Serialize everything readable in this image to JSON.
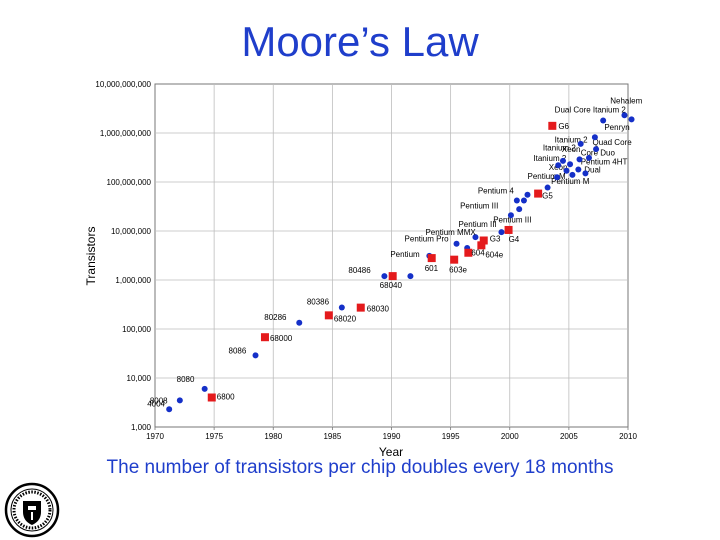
{
  "page": {
    "title": "Moore’s Law",
    "caption": "The number of transistors per chip doubles every 18 months"
  },
  "colors": {
    "title": "#1f3ecb",
    "intel": "#1530c8",
    "other": "#e41a1c",
    "grid": "#bdbdbd"
  },
  "seal": {
    "icon": "university-seal-icon"
  },
  "chart_data": {
    "type": "scatter",
    "title": "",
    "xlabel": "Year",
    "ylabel": "Transistors",
    "xlim": [
      1970,
      2010
    ],
    "ylim": [
      1000,
      10000000000
    ],
    "yscale": "log",
    "grid": true,
    "legend": "none",
    "x_ticks": [
      "1970",
      "1975",
      "1980",
      "1985",
      "1990",
      "1995",
      "2000",
      "2005",
      "2010"
    ],
    "y_ticks": [
      "1,000",
      "10,000",
      "100,000",
      "1,000,000",
      "10,000,000",
      "100,000,000",
      "1,000,000,000",
      "10,000,000,000"
    ],
    "series": [
      {
        "marker": "circle",
        "points": [
          {
            "x": 1971.2,
            "y": 2300,
            "label": "4004"
          },
          {
            "x": 1972.1,
            "y": 3500,
            "label": "8008"
          },
          {
            "x": 1974.2,
            "y": 6000,
            "label": "8080"
          },
          {
            "x": 1978.5,
            "y": 29000,
            "label": "8086"
          },
          {
            "x": 1982.2,
            "y": 134000,
            "label": "80286"
          },
          {
            "x": 1985.8,
            "y": 275000,
            "label": "80386"
          },
          {
            "x": 1989.4,
            "y": 1200000,
            "label": "80486"
          },
          {
            "x": 1991.6,
            "y": 1200000,
            "label": ""
          },
          {
            "x": 1993.2,
            "y": 3100000,
            "label": "Pentium"
          },
          {
            "x": 1995.5,
            "y": 5500000,
            "label": "Pentium Pro"
          },
          {
            "x": 1996.4,
            "y": 4500000,
            "label": ""
          },
          {
            "x": 1997.1,
            "y": 7500000,
            "label": "Pentium MMX"
          },
          {
            "x": 1999.3,
            "y": 9500000,
            "label": "Pentium III"
          },
          {
            "x": 2000.1,
            "y": 21000000,
            "label": ""
          },
          {
            "x": 2000.8,
            "y": 28000000,
            "label": ""
          },
          {
            "x": 2001.2,
            "y": 42000000,
            "label": ""
          },
          {
            "x": 2000.6,
            "y": 42000000,
            "label": ""
          },
          {
            "x": 2001.5,
            "y": 55000000,
            "label": ""
          },
          {
            "x": 2003.2,
            "y": 77000000,
            "label": ""
          },
          {
            "x": 2004.0,
            "y": 125000000,
            "label": ""
          },
          {
            "x": 2004.1,
            "y": 220000000,
            "label": ""
          },
          {
            "x": 2004.8,
            "y": 170000000,
            "label": ""
          },
          {
            "x": 2005.1,
            "y": 230000000,
            "label": ""
          },
          {
            "x": 2005.9,
            "y": 290000000,
            "label": ""
          },
          {
            "x": 2006.0,
            "y": 600000000,
            "label": ""
          },
          {
            "x": 2004.5,
            "y": 270000000,
            "label": ""
          },
          {
            "x": 2005.3,
            "y": 140000000,
            "label": ""
          },
          {
            "x": 2005.8,
            "y": 180000000,
            "label": ""
          },
          {
            "x": 2006.4,
            "y": 150000000,
            "label": ""
          },
          {
            "x": 2006.7,
            "y": 310000000,
            "label": ""
          },
          {
            "x": 2007.2,
            "y": 820000000,
            "label": ""
          },
          {
            "x": 2007.3,
            "y": 470000000,
            "label": ""
          },
          {
            "x": 2007.9,
            "y": 1800000000,
            "label": ""
          },
          {
            "x": 2009.7,
            "y": 2300000000,
            "label": ""
          },
          {
            "x": 2010.3,
            "y": 1900000000,
            "label": ""
          }
        ]
      },
      {
        "marker": "square",
        "points": [
          {
            "x": 1974.8,
            "y": 4000,
            "label": "6800"
          },
          {
            "x": 1979.3,
            "y": 68000,
            "label": "68000"
          },
          {
            "x": 1984.7,
            "y": 190000,
            "label": "68020"
          },
          {
            "x": 1987.4,
            "y": 273000,
            "label": "68030"
          },
          {
            "x": 1990.1,
            "y": 1200000,
            "label": "68040"
          },
          {
            "x": 1993.4,
            "y": 2800000,
            "label": "601"
          },
          {
            "x": 1995.3,
            "y": 2600000,
            "label": "603e"
          },
          {
            "x": 1996.5,
            "y": 3600000,
            "label": "604"
          },
          {
            "x": 1997.6,
            "y": 5100000,
            "label": "604e"
          },
          {
            "x": 1997.8,
            "y": 6400000,
            "label": "G3"
          },
          {
            "x": 1999.9,
            "y": 10500000,
            "label": "G4"
          },
          {
            "x": 2002.4,
            "y": 58000000,
            "label": "G5"
          },
          {
            "x": 2003.6,
            "y": 1400000000,
            "label": "G6"
          }
        ]
      }
    ],
    "annotations": [
      {
        "x": 2008.5,
        "y": 4000000000,
        "text": "Nehalem"
      },
      {
        "x": 2003.8,
        "y": 2600000000,
        "text": "Dual Core Itanium 2"
      },
      {
        "x": 2008.0,
        "y": 1150000000,
        "text": "Penryn"
      },
      {
        "x": 2003.8,
        "y": 640000000,
        "text": "Itanium 2"
      },
      {
        "x": 2002.8,
        "y": 440000000,
        "text": "Itanium 2"
      },
      {
        "x": 2007.0,
        "y": 570000000,
        "text": "Quad Core"
      },
      {
        "x": 2004.4,
        "y": 410000000,
        "text": "Xeon"
      },
      {
        "x": 2006.0,
        "y": 350000000,
        "text": "Core Duo"
      },
      {
        "x": 2002.0,
        "y": 270000000,
        "text": "Itanium 2"
      },
      {
        "x": 2006.0,
        "y": 230000000,
        "text": "Pentium 4HT"
      },
      {
        "x": 2003.3,
        "y": 175000000,
        "text": "Xeon"
      },
      {
        "x": 2006.3,
        "y": 155000000,
        "text": "Dual"
      },
      {
        "x": 2001.5,
        "y": 115000000,
        "text": "Pentium M"
      },
      {
        "x": 2003.5,
        "y": 90000000,
        "text": "Pentium M"
      },
      {
        "x": 1997.3,
        "y": 58000000,
        "text": "Pentium 4"
      },
      {
        "x": 1995.8,
        "y": 29000000,
        "text": "Pentium III"
      },
      {
        "x": 1998.6,
        "y": 15000000,
        "text": "Pentium III"
      }
    ]
  }
}
